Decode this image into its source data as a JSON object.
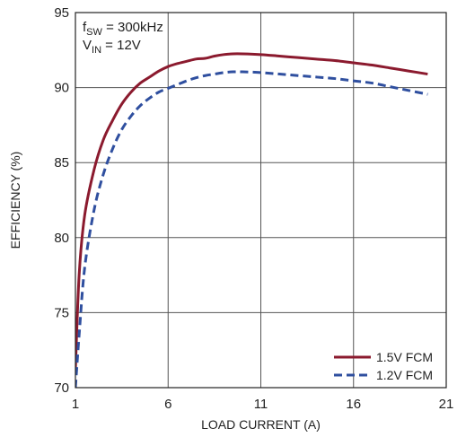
{
  "chart_data": {
    "type": "line",
    "xlabel": "LOAD CURRENT (A)",
    "ylabel": "EFFICIENCY (%)",
    "xlim": [
      1,
      21
    ],
    "ylim": [
      70,
      95
    ],
    "xticks": [
      1,
      6,
      11,
      16,
      21
    ],
    "yticks": [
      70,
      75,
      80,
      85,
      90,
      95
    ],
    "grid": true,
    "legend_position": "bottom-right",
    "annotations": {
      "fsw": {
        "base": "f",
        "sub": "SW",
        "rest": " = 300kHz"
      },
      "vin": {
        "base": "V",
        "sub": "IN",
        "rest": " = 12V"
      }
    },
    "series": [
      {
        "name": "1.5V FCM",
        "color": "#8b1a2e",
        "style": "solid",
        "x": [
          1,
          1.2,
          1.5,
          2,
          2.5,
          3,
          3.5,
          4,
          4.5,
          5,
          5.5,
          6,
          6.5,
          7,
          7.5,
          8,
          8.5,
          9,
          9.5,
          10,
          11,
          12,
          13,
          14,
          15,
          16,
          17,
          18,
          19,
          20
        ],
        "y": [
          71.2,
          77.5,
          81.5,
          84.5,
          86.5,
          87.8,
          88.9,
          89.7,
          90.3,
          90.7,
          91.1,
          91.4,
          91.6,
          91.75,
          91.9,
          91.95,
          92.1,
          92.2,
          92.25,
          92.25,
          92.2,
          92.1,
          92.0,
          91.9,
          91.8,
          91.65,
          91.5,
          91.3,
          91.1,
          90.9
        ]
      },
      {
        "name": "1.2V FCM",
        "color": "#2f4f9f",
        "style": "dashed",
        "x": [
          1,
          1.2,
          1.5,
          2,
          2.5,
          3,
          3.5,
          4,
          4.5,
          5,
          5.5,
          6,
          6.5,
          7,
          7.5,
          8,
          8.5,
          9,
          9.5,
          10,
          11,
          12,
          13,
          14,
          15,
          16,
          17,
          18,
          19,
          20
        ],
        "y": [
          70.0,
          73.5,
          78.0,
          81.8,
          84.2,
          85.9,
          87.2,
          88.1,
          88.8,
          89.3,
          89.7,
          89.95,
          90.2,
          90.45,
          90.65,
          90.8,
          90.9,
          91.0,
          91.05,
          91.05,
          91.0,
          90.9,
          90.8,
          90.7,
          90.6,
          90.45,
          90.3,
          90.05,
          89.8,
          89.55
        ]
      }
    ]
  }
}
